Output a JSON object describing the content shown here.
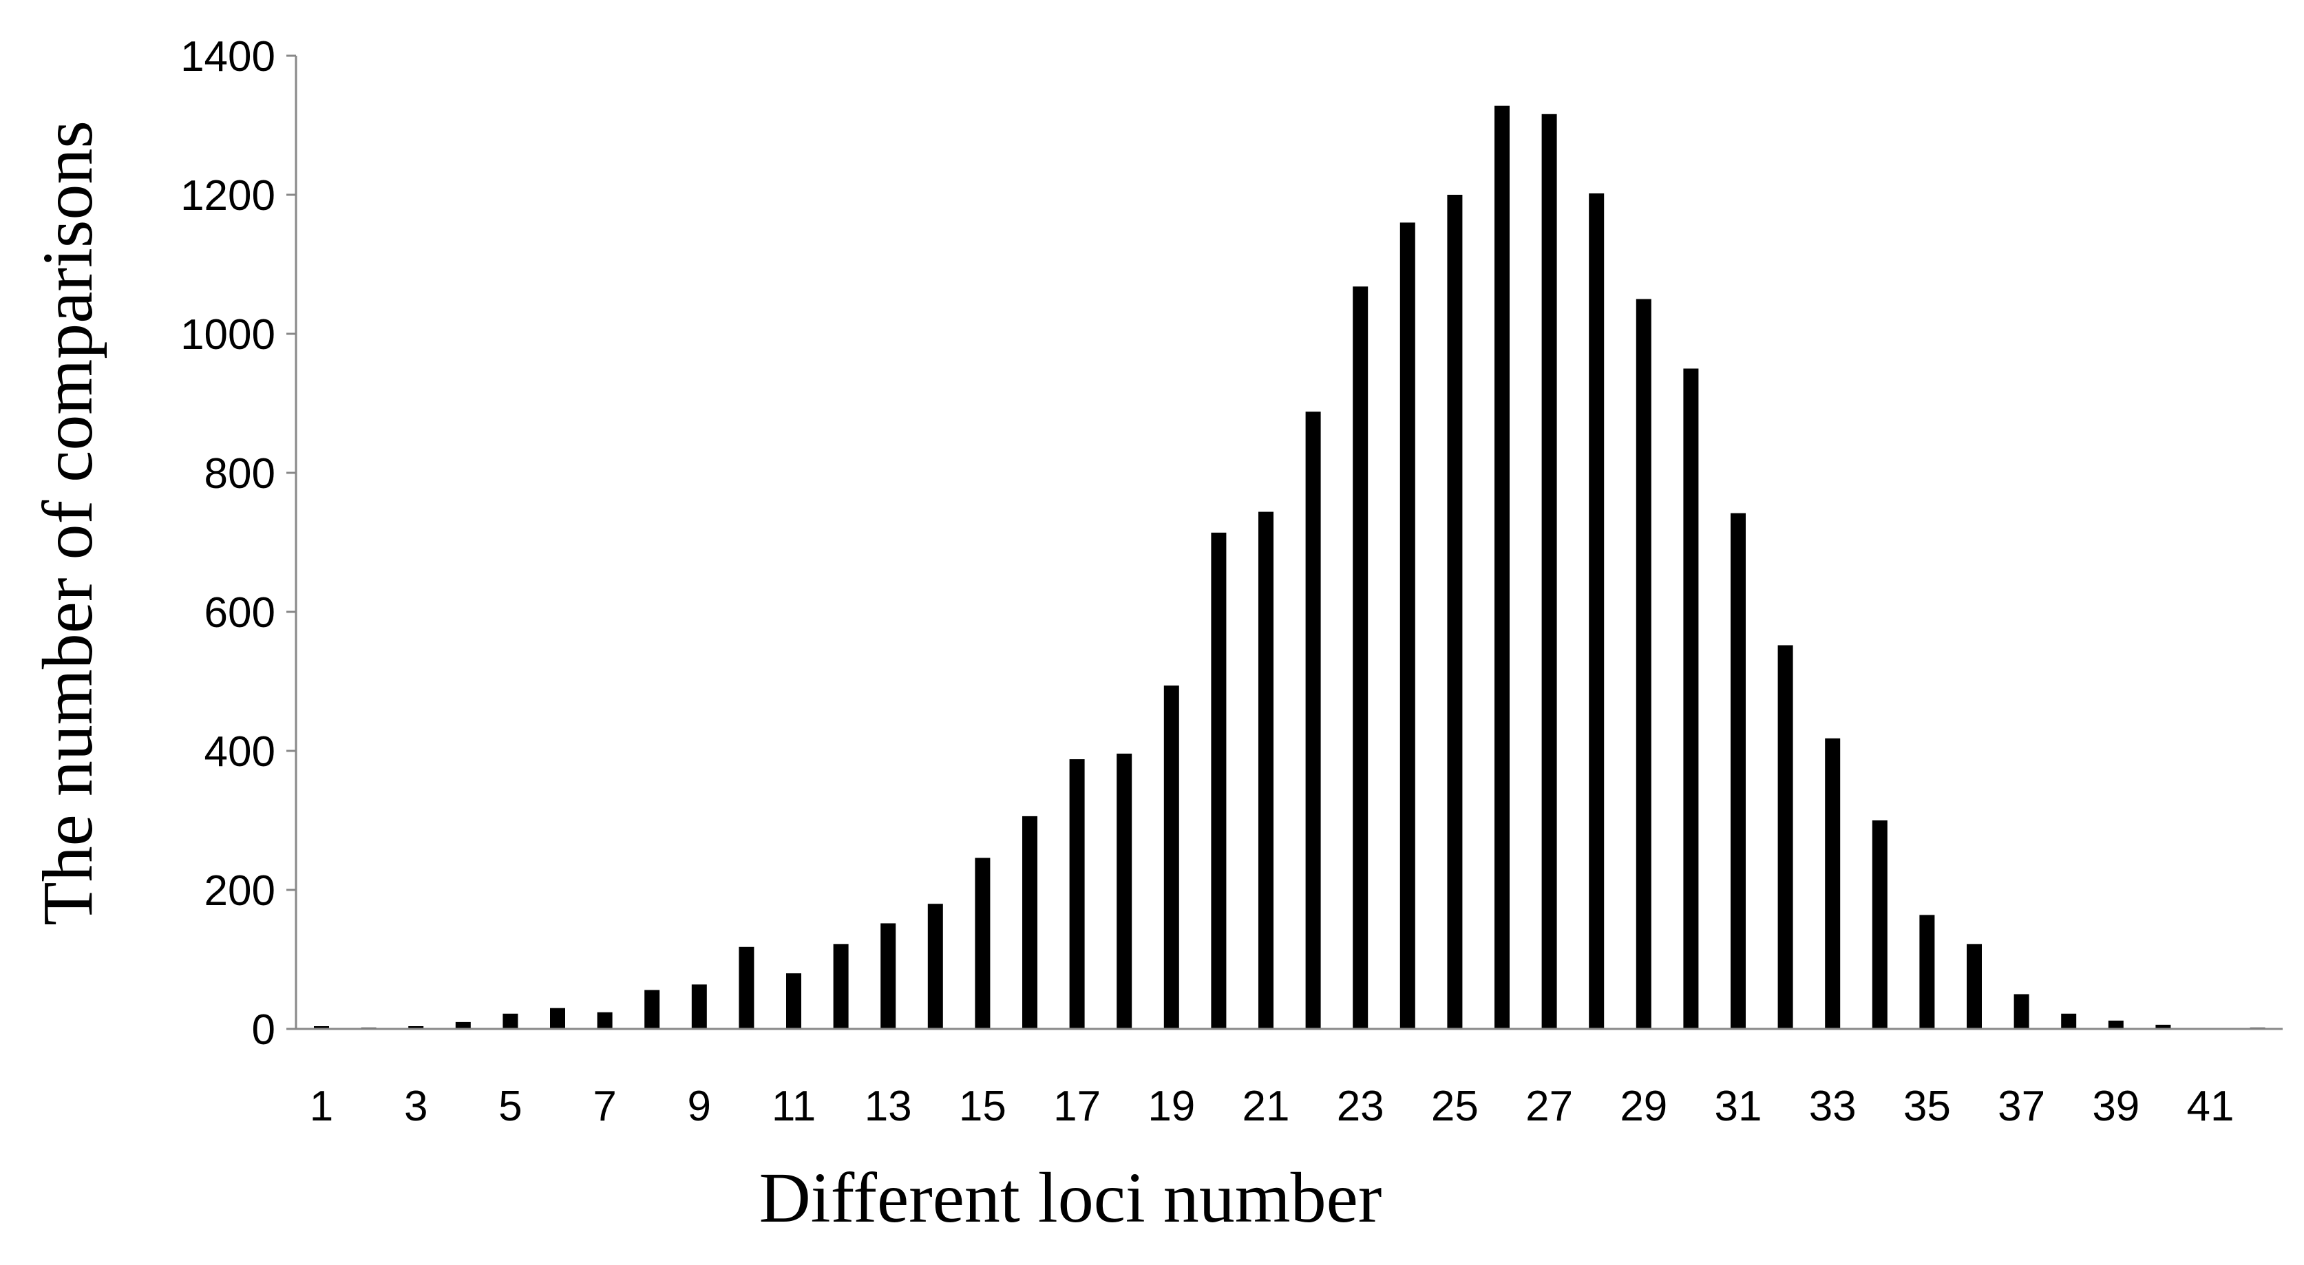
{
  "chart_data": {
    "type": "bar",
    "title": "",
    "xlabel": "Different loci number",
    "ylabel": "The number of comparisons",
    "categories": [
      "1",
      "2",
      "3",
      "4",
      "5",
      "6",
      "7",
      "8",
      "9",
      "10",
      "11",
      "12",
      "13",
      "14",
      "15",
      "16",
      "17",
      "18",
      "19",
      "20",
      "21",
      "22",
      "23",
      "24",
      "25",
      "26",
      "27",
      "28",
      "29",
      "30",
      "31",
      "32",
      "33",
      "34",
      "35",
      "36",
      "37",
      "38",
      "39",
      "40",
      "41",
      "42"
    ],
    "values": [
      4,
      2,
      4,
      10,
      22,
      30,
      24,
      56,
      64,
      118,
      80,
      122,
      152,
      180,
      246,
      306,
      388,
      396,
      494,
      714,
      744,
      888,
      1068,
      1160,
      1200,
      1328,
      1316,
      1202,
      1050,
      950,
      742,
      552,
      418,
      300,
      164,
      122,
      50,
      22,
      12,
      6,
      0,
      2
    ],
    "x_tick_labels": [
      "1",
      "3",
      "5",
      "7",
      "9",
      "11",
      "13",
      "15",
      "17",
      "19",
      "21",
      "23",
      "25",
      "27",
      "29",
      "31",
      "33",
      "35",
      "37",
      "39",
      "41"
    ],
    "y_ticks": [
      0,
      200,
      400,
      600,
      800,
      1000,
      1200,
      1400
    ],
    "ylim": [
      0,
      1400
    ],
    "grid": false,
    "legend": "none",
    "bar_color": "#000000",
    "axis_color": "#888888"
  }
}
